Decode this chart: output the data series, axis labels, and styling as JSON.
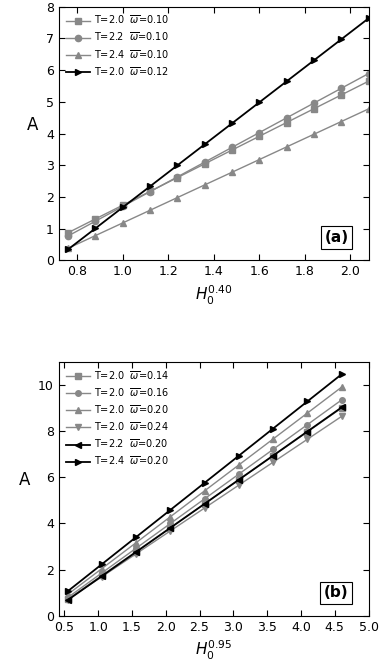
{
  "panel_a": {
    "xlabel": "$H_0^{0.40}$",
    "ylabel": "A",
    "xlim": [
      0.72,
      2.08
    ],
    "ylim": [
      0,
      8
    ],
    "xticks": [
      0.8,
      1.0,
      1.2,
      1.4,
      1.6,
      1.8,
      2.0
    ],
    "yticks": [
      0,
      1,
      2,
      3,
      4,
      5,
      6,
      7,
      8
    ],
    "label": "(a)",
    "series": [
      {
        "label": "T=2.0  $\\overline{\\omega}$=0.10",
        "slope": 3.62,
        "intercept": -1.88,
        "x_start": 0.76,
        "x_end": 2.08,
        "n_points": 12,
        "marker": "s",
        "color": "#888888",
        "lw": 1.0,
        "ms": 4.5
      },
      {
        "label": "T=2.2  $\\overline{\\omega}$=0.10",
        "slope": 3.88,
        "intercept": -2.18,
        "x_start": 0.76,
        "x_end": 2.08,
        "n_points": 12,
        "marker": "o",
        "color": "#888888",
        "lw": 1.0,
        "ms": 4.5
      },
      {
        "label": "T=2.4  $\\overline{\\omega}$=0.10",
        "slope": 3.33,
        "intercept": -2.15,
        "x_start": 0.76,
        "x_end": 2.08,
        "n_points": 12,
        "marker": "^",
        "color": "#888888",
        "lw": 1.0,
        "ms": 4.5
      },
      {
        "label": "T=2.0  $\\overline{\\omega}$=0.12",
        "slope": 5.52,
        "intercept": -3.85,
        "x_start": 0.76,
        "x_end": 2.08,
        "n_points": 12,
        "marker": ">",
        "color": "#000000",
        "lw": 1.3,
        "ms": 4.5
      }
    ]
  },
  "panel_b": {
    "xlabel": "$H_0^{0.95}$",
    "ylabel": "A",
    "xlim": [
      0.42,
      4.9
    ],
    "ylim": [
      0,
      11
    ],
    "xticks": [
      0.5,
      1.0,
      1.5,
      2.0,
      2.5,
      3.0,
      3.5,
      4.0,
      4.5,
      5.0
    ],
    "yticks": [
      0,
      2,
      4,
      6,
      8,
      10
    ],
    "label": "(b)",
    "series": [
      {
        "label": "T=2.0  $\\overline{\\omega}$=0.14",
        "slope": 2.048,
        "intercept": -0.42,
        "x_start": 0.55,
        "x_end": 4.6,
        "n_points": 9,
        "marker": "s",
        "color": "#888888",
        "lw": 1.0,
        "ms": 4.0
      },
      {
        "label": "T=2.0  $\\overline{\\omega}$=0.16",
        "slope": 2.115,
        "intercept": -0.38,
        "x_start": 0.55,
        "x_end": 4.6,
        "n_points": 9,
        "marker": "o",
        "color": "#888888",
        "lw": 1.0,
        "ms": 4.0
      },
      {
        "label": "T=2.0  $\\overline{\\omega}$=0.20",
        "slope": 2.218,
        "intercept": -0.3,
        "x_start": 0.55,
        "x_end": 4.6,
        "n_points": 9,
        "marker": "^",
        "color": "#888888",
        "lw": 1.0,
        "ms": 4.0
      },
      {
        "label": "T=2.0  $\\overline{\\omega}$=0.24",
        "slope": 1.96,
        "intercept": -0.38,
        "x_start": 0.55,
        "x_end": 4.6,
        "n_points": 9,
        "marker": "v",
        "color": "#888888",
        "lw": 1.0,
        "ms": 4.0
      },
      {
        "label": "T=2.2  $\\overline{\\omega}$=0.20",
        "slope": 2.062,
        "intercept": -0.46,
        "x_start": 0.55,
        "x_end": 4.6,
        "n_points": 9,
        "marker": "<",
        "color": "#000000",
        "lw": 1.3,
        "ms": 4.0
      },
      {
        "label": "T=2.4  $\\overline{\\omega}$=0.20",
        "slope": 2.322,
        "intercept": -0.22,
        "x_start": 0.55,
        "x_end": 4.6,
        "n_points": 9,
        "marker": ">",
        "color": "#000000",
        "lw": 1.3,
        "ms": 4.0
      }
    ]
  }
}
